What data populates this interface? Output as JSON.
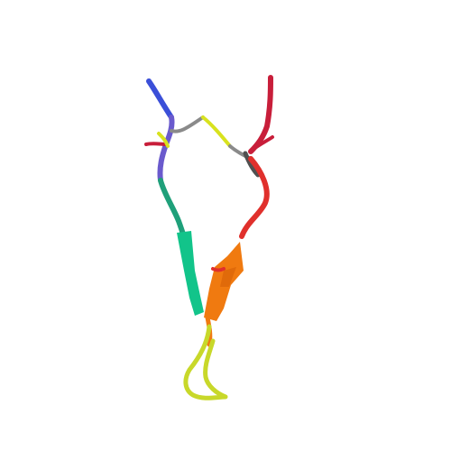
{
  "viewer": {
    "background": "#ffffff",
    "representation": "cartoon",
    "color_scheme": "rainbow",
    "colors": {
      "n_terminus": "#3b4fd8",
      "blue_violet": "#6a5acd",
      "teal": "#1fa07a",
      "green": "#12c48a",
      "yellow": "#d8e21e",
      "yellow_green": "#c8d82a",
      "orange": "#f07a10",
      "dark_orange": "#e06a0a",
      "red": "#e0302c",
      "crimson": "#c81e3a",
      "gray_bond": "#8a8a8a",
      "dark_bond": "#505050"
    }
  }
}
